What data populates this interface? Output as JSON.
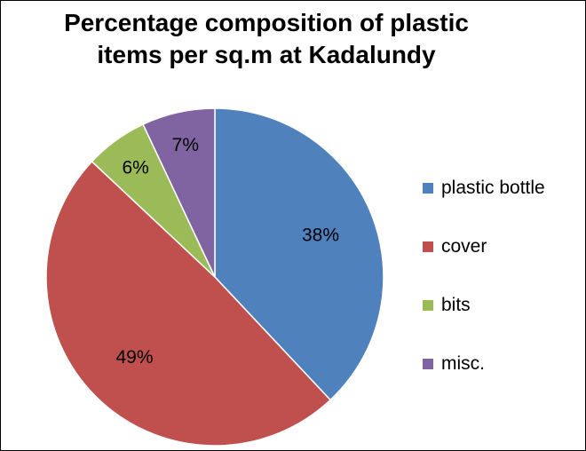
{
  "chart_data": {
    "type": "pie",
    "title": "Percentage composition of plastic items per sq.m at Kadalundy",
    "title_lines": [
      "Percentage composition of plastic",
      "items per sq.m at Kadalundy"
    ],
    "start_angle": "12 o'clock",
    "direction": "clockwise",
    "legend_position": "right",
    "slices": [
      {
        "label": "plastic bottle",
        "value": 38,
        "value_label": "38%",
        "color": "#4F81BD"
      },
      {
        "label": "cover",
        "value": 49,
        "value_label": "49%",
        "color": "#C0504D"
      },
      {
        "label": "bits",
        "value": 6,
        "value_label": "6%",
        "color": "#9BBB59"
      },
      {
        "label": "misc.",
        "value": 7,
        "value_label": "7%",
        "color": "#8064A2"
      }
    ]
  }
}
